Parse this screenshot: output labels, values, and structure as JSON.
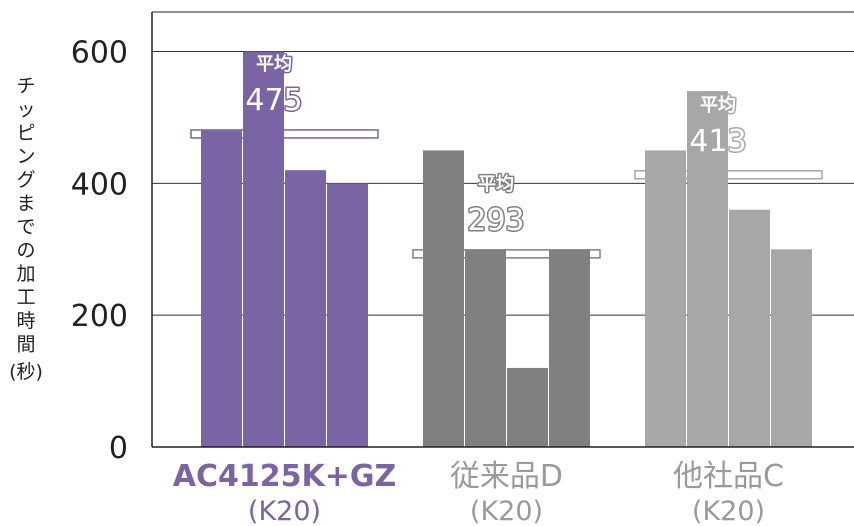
{
  "chart_data": {
    "type": "bar",
    "ylabel": "チッピングまでの加工時間",
    "ylabel_unit": "(秒)",
    "ylim": [
      0,
      660
    ],
    "yticks": [
      0,
      200,
      400,
      600
    ],
    "grid": true,
    "avg_label": "平均",
    "groups": [
      {
        "name": "AC4125K+GZ",
        "sub": "(K20)",
        "values": [
          480,
          600,
          420,
          400
        ],
        "average": 475,
        "color": "#7a64a3",
        "label_color": "#7a64a3",
        "label_bold": true
      },
      {
        "name": "従来品D",
        "sub": "(K20)",
        "values": [
          450,
          300,
          120,
          300
        ],
        "average": 293,
        "color": "#808083",
        "label_color": "#9a9a9a",
        "label_bold": false
      },
      {
        "name": "他社品C",
        "sub": "(K20)",
        "values": [
          450,
          540,
          360,
          300
        ],
        "average": 413,
        "color": "#a7a7aa",
        "label_color": "#9a9a9a",
        "label_bold": false
      }
    ]
  }
}
